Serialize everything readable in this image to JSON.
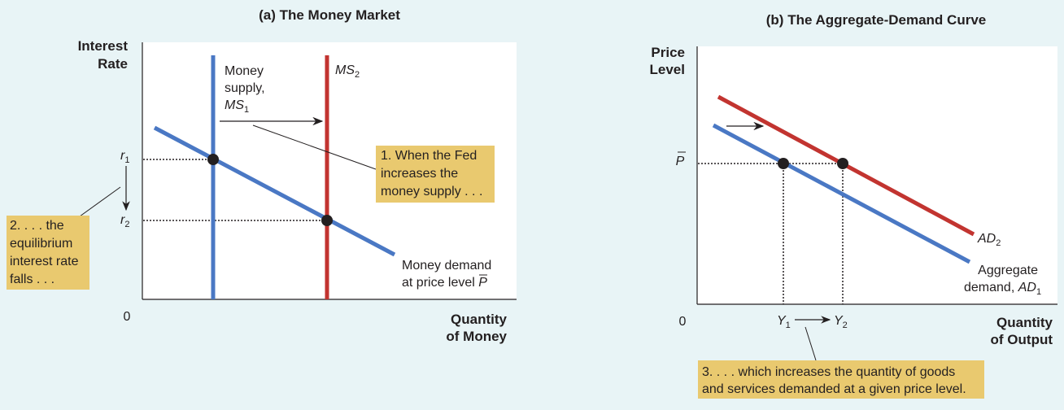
{
  "colors": {
    "background": "#e8f4f6",
    "plot_bg": "#ffffff",
    "initial_curve": "#4a78c4",
    "shifted_curve": "#c23430",
    "callout": "#e9c96f",
    "ink": "#231f20"
  },
  "panel_a": {
    "title": "(a) The Money Market",
    "y_axis": [
      "Interest",
      "Rate"
    ],
    "x_axis": [
      "Quantity",
      "of Money"
    ],
    "origin": "0",
    "r1": "r",
    "r1_sub": "1",
    "r2": "r",
    "r2_sub": "2",
    "ms1_label": [
      "Money",
      "supply,"
    ],
    "ms1_name": "MS",
    "ms1_sub": "1",
    "ms2_name": "MS",
    "ms2_sub": "2",
    "demand_label": [
      "Money demand",
      "at price level "
    ],
    "demand_p": "P",
    "callout1": [
      "1. When the Fed",
      "increases the",
      "money supply . . ."
    ],
    "callout2": [
      "2. . . . the",
      "equilibrium",
      "interest rate",
      "falls . . ."
    ]
  },
  "panel_b": {
    "title": "(b) The Aggregate-Demand Curve",
    "y_axis": [
      "Price",
      "Level"
    ],
    "x_axis": [
      "Quantity",
      "of Output"
    ],
    "origin": "0",
    "p_bar": "P",
    "y1": "Y",
    "y1_sub": "1",
    "y2": "Y",
    "y2_sub": "2",
    "ad2_name": "AD",
    "ad2_sub": "2",
    "ad1_label": [
      "Aggregate",
      "demand, "
    ],
    "ad1_name": "AD",
    "ad1_sub": "1",
    "callout3": [
      "3. . . . which increases the quantity of goods",
      "and services demanded at a given price level."
    ]
  }
}
